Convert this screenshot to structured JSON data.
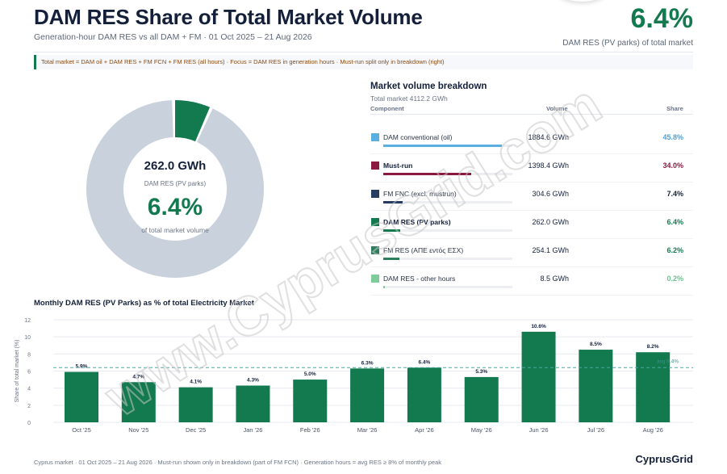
{
  "header": {
    "title": "DAM RES Share of Total Market Volume",
    "subtitle": "Generation-hour DAM RES vs all DAM + FM · 01 Oct 2025 – 21 Aug 2026",
    "kpi_value": "6.4%",
    "kpi_label": "DAM RES (PV parks) of total market"
  },
  "note": "Total market = DAM oil + DAM RES + FM FCN + FM RES (all hours) · Focus = DAM RES in generation hours · Must-run split only in breakdown (right)",
  "donut": {
    "center_value": "262.0 GWh",
    "center_sub": "DAM RES (PV parks)",
    "center_pct": "6.4%",
    "center_of": "of total market volume",
    "highlight_fraction": 0.064,
    "highlight_color": "#137a4f",
    "rest_color": "#c9d1dc"
  },
  "breakdown": {
    "title": "Market volume breakdown",
    "total": "Total market  4112.2 GWh",
    "col_component": "Component",
    "col_volume": "Volume",
    "col_share": "Share",
    "rows": [
      {
        "label": "DAM conventional (oil)",
        "volume": "1884.6 GWh",
        "share": "45.8%",
        "share_value": 45.8,
        "color": "#5aaee0",
        "share_color": "#4d9fd6",
        "bold": false
      },
      {
        "label": "Must-run",
        "volume": "1398.4 GWh",
        "share": "34.0%",
        "share_value": 34.0,
        "color": "#8b1a3e",
        "share_color": "#8b1a3e",
        "bold": true
      },
      {
        "label": "FM FNC (excl. mustrun)",
        "volume": "304.6 GWh",
        "share": "7.4%",
        "share_value": 7.4,
        "color": "#263b5e",
        "share_color": "#14203a",
        "bold": false
      },
      {
        "label": "DAM RES (PV parks)",
        "volume": "262.0 GWh",
        "share": "6.4%",
        "share_value": 6.4,
        "color": "#137a4f",
        "share_color": "#137a4f",
        "bold": true
      },
      {
        "label": "FM RES (ΑΠΕ εντός ΕΣΧ)",
        "volume": "254.1 GWh",
        "share": "6.2%",
        "share_value": 6.2,
        "color": "#2e7d5b",
        "share_color": "#137a4f",
        "bold": false
      },
      {
        "label": "DAM RES - other hours",
        "volume": "8.5 GWh",
        "share": "0.2%",
        "share_value": 0.2,
        "color": "#7dcc9a",
        "share_color": "#6cc08c",
        "bold": false
      }
    ]
  },
  "chart_data": {
    "type": "bar",
    "title": "Monthly DAM RES (PV Parks) as % of total Electricity Market",
    "ylabel": "Share of total market (%)",
    "categories": [
      "Oct '25",
      "Nov '25",
      "Dec '25",
      "Jan '26",
      "Feb '26",
      "Mar '26",
      "Apr '26",
      "May '26",
      "Jun '26",
      "Jul '26",
      "Aug '26"
    ],
    "values": [
      5.9,
      4.7,
      4.1,
      4.3,
      5.0,
      6.3,
      6.4,
      5.3,
      10.6,
      8.5,
      8.2
    ],
    "data_labels": [
      "5.9%",
      "4.7%",
      "4.1%",
      "4.3%",
      "5.0%",
      "6.3%",
      "6.4%",
      "5.3%",
      "10.6%",
      "8.5%",
      "8.2%"
    ],
    "ylim": [
      0,
      12
    ],
    "yticks": [
      "0",
      "2",
      "4",
      "6",
      "8",
      "10",
      "12"
    ],
    "reference_line": {
      "value": 6.4,
      "label": "avg 6.4%"
    },
    "bar_color": "#137a4f",
    "grid": true
  },
  "footer": {
    "text": "Cyprus market · 01 Oct 2025 – 21 Aug 2026 · Must-run shown only in breakdown (part of FM FCN) · Generation hours = avg RES ≥ 8% of monthly peak",
    "brand": "CyprusGrid"
  },
  "watermark": "www.CyprusGrid.com"
}
